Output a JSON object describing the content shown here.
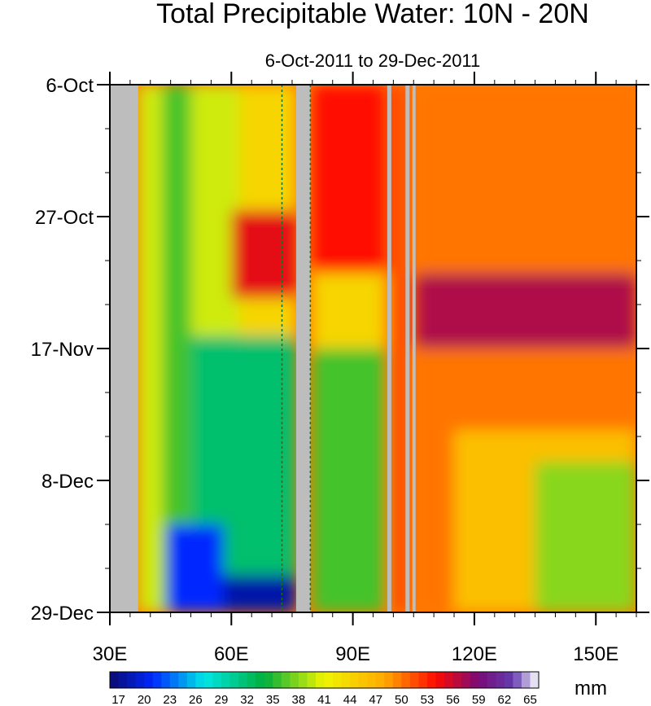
{
  "chart_data": {
    "type": "heatmap",
    "title": "Total Precipitable Water: 10N - 20N",
    "subtitle": "6-Oct-2011 to 29-Dec-2011",
    "x_axis": {
      "range": [
        30,
        160
      ],
      "ticks": [
        30,
        60,
        90,
        120,
        150
      ],
      "tick_labels": [
        "30E",
        "60E",
        "90E",
        "120E",
        "150E"
      ],
      "minor_step": 5
    },
    "y_axis": {
      "range_days": [
        0,
        84
      ],
      "ticks": [
        0,
        21,
        42,
        63,
        84
      ],
      "tick_labels": [
        "6-Oct",
        "27-Oct",
        "17-Nov",
        "8-Dec",
        "29-Dec"
      ],
      "minor_step": 7,
      "direction": "time increases downward"
    },
    "no_data_strips_longitude": [
      [
        30,
        37
      ],
      [
        76,
        79.5
      ],
      [
        98.5,
        99.5
      ],
      [
        103,
        104
      ],
      [
        104.7,
        105.5
      ]
    ],
    "coastline_dashes_longitude": [
      72.5,
      79.5
    ],
    "colorbar": {
      "labels": [
        "17",
        "20",
        "23",
        "26",
        "29",
        "32",
        "35",
        "38",
        "41",
        "44",
        "47",
        "50",
        "53",
        "56",
        "59",
        "62",
        "65"
      ],
      "min": 16,
      "max": 66,
      "step": 1,
      "unit": "mm"
    },
    "regions": [
      {
        "lon": [
          37,
          43
        ],
        "days": [
          0,
          84
        ],
        "value": 40
      },
      {
        "lon": [
          43,
          50
        ],
        "days": [
          0,
          84
        ],
        "value": 36
      },
      {
        "lon": [
          50,
          62
        ],
        "days": [
          0,
          40
        ],
        "value": 40
      },
      {
        "lon": [
          62,
          76
        ],
        "days": [
          0,
          40
        ],
        "value": 44
      },
      {
        "lon": [
          60,
          76
        ],
        "days": [
          20,
          34
        ],
        "value": 55
      },
      {
        "lon": [
          50,
          76
        ],
        "days": [
          40,
          84
        ],
        "value": 32
      },
      {
        "lon": [
          44,
          58
        ],
        "days": [
          70,
          84
        ],
        "value": 21
      },
      {
        "lon": [
          58,
          76
        ],
        "days": [
          78,
          84
        ],
        "value": 18
      },
      {
        "lon": [
          80,
          98
        ],
        "days": [
          0,
          30
        ],
        "value": 54
      },
      {
        "lon": [
          80,
          98
        ],
        "days": [
          30,
          42
        ],
        "value": 44
      },
      {
        "lon": [
          80,
          98
        ],
        "days": [
          42,
          84
        ],
        "value": 36
      },
      {
        "lon": [
          99.5,
          103
        ],
        "days": [
          0,
          84
        ],
        "value": 52
      },
      {
        "lon": [
          105.5,
          160
        ],
        "days": [
          0,
          84
        ],
        "value": 50
      },
      {
        "lon": [
          105.5,
          160
        ],
        "days": [
          30,
          42
        ],
        "value": 57
      },
      {
        "lon": [
          115,
          160
        ],
        "days": [
          55,
          84
        ],
        "value": 46
      },
      {
        "lon": [
          135,
          160
        ],
        "days": [
          60,
          84
        ],
        "value": 38
      }
    ]
  }
}
